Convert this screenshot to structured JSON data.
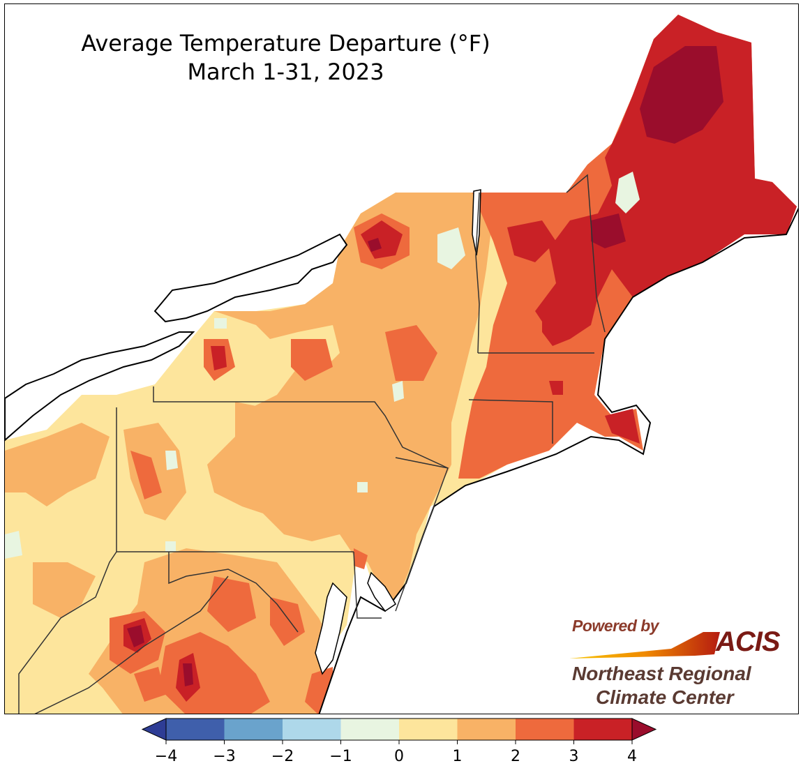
{
  "title": {
    "line1": "Average Temperature Departure (°F)",
    "line2": "March 1-31, 2023"
  },
  "map": {
    "region": "Northeast United States",
    "variable": "temperature departure",
    "units": "°F",
    "period": "March 1-31, 2023"
  },
  "colorbar": {
    "extend": "both",
    "bins": [
      {
        "min": -4,
        "max": -3,
        "color": "#3f5fab"
      },
      {
        "min": -3,
        "max": -2,
        "color": "#6aa3cc"
      },
      {
        "min": -2,
        "max": -1,
        "color": "#aed8ea"
      },
      {
        "min": -1,
        "max": 0,
        "color": "#e8f5e1"
      },
      {
        "min": 0,
        "max": 1,
        "color": "#fde59c"
      },
      {
        "min": 1,
        "max": 2,
        "color": "#f8b266"
      },
      {
        "min": 2,
        "max": 3,
        "color": "#ee6a3d"
      },
      {
        "min": 3,
        "max": 4,
        "color": "#c92126"
      }
    ],
    "under_color": "#2e3d95",
    "over_color": "#9a0d2c",
    "ticks": [
      "−4",
      "−3",
      "−2",
      "−1",
      "0",
      "1",
      "2",
      "3",
      "4"
    ]
  },
  "logo": {
    "powered_by": "Powered by",
    "acis": "ACIS",
    "org_line1": "Northeast Regional",
    "org_line2": "Climate Center"
  }
}
